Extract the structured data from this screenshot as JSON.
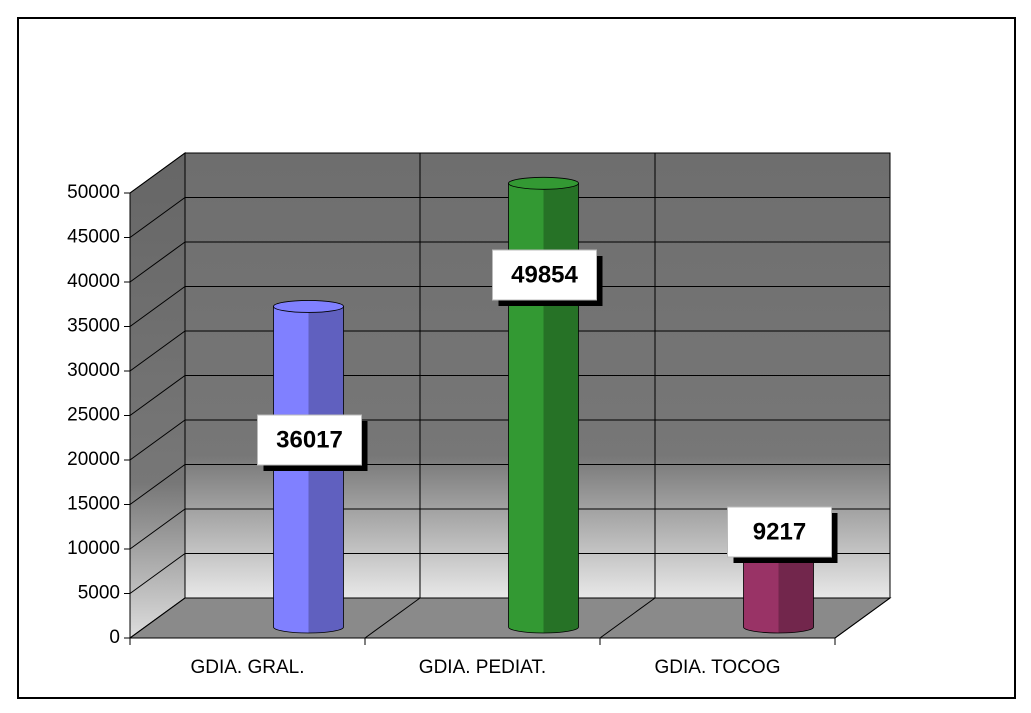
{
  "chart_data": {
    "type": "bar3d",
    "categories": [
      "GDIA. GRAL.",
      "GDIA. PEDIAT.",
      "GDIA. TOCOG"
    ],
    "values": [
      36017,
      49854,
      9217
    ],
    "colors": [
      "#8080ff",
      "#339933",
      "#993366"
    ],
    "ylim": [
      0,
      50000
    ],
    "yticks": [
      0,
      5000,
      10000,
      15000,
      20000,
      25000,
      30000,
      35000,
      40000,
      45000,
      50000
    ],
    "grid": true
  }
}
